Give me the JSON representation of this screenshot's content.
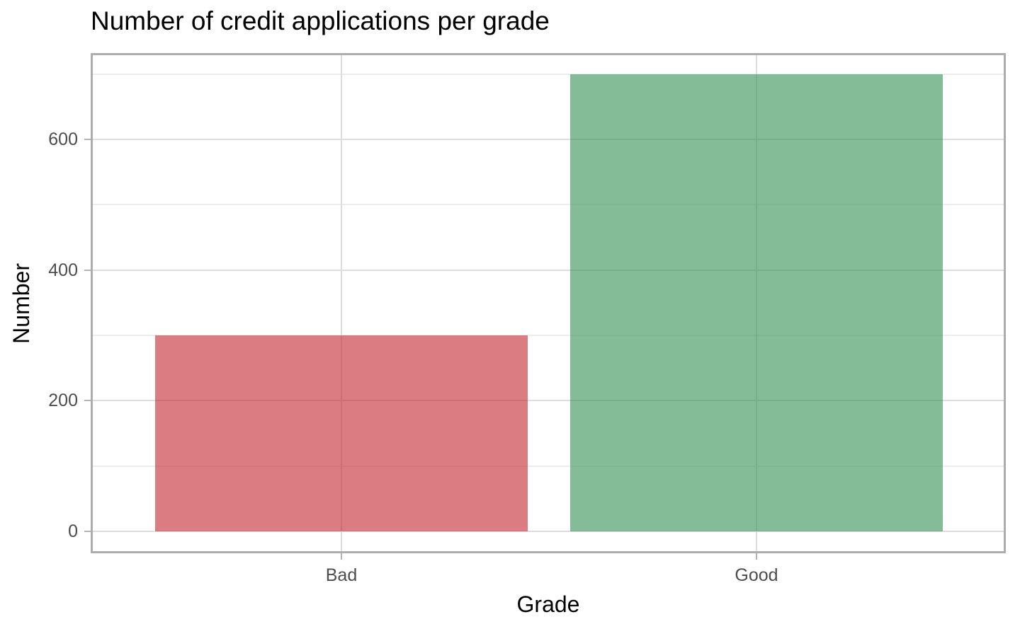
{
  "chart_data": {
    "type": "bar",
    "title": "Number of credit applications per grade",
    "xlabel": "Grade",
    "ylabel": "Number",
    "categories": [
      "Bad",
      "Good"
    ],
    "values": [
      300,
      700
    ],
    "y_ticks": [
      0,
      200,
      400,
      600
    ],
    "y_minor_ticks": [
      100,
      300,
      500,
      700
    ],
    "ylim": [
      -35,
      735
    ],
    "bar_width_fraction": 0.9,
    "grid": "major-and-minor",
    "legend": "none",
    "bar_fills_rgba": [
      "rgba(196,43,51,0.62)",
      "rgba(57,147,87,0.62)"
    ],
    "bar_colors_flattened": [
      "#DA7C80",
      "#84BC97"
    ],
    "theme": {
      "background": "#FFFFFF",
      "panel_border": "#ADADAD",
      "grid_major": "#DDDDDD",
      "grid_minor": "#ECECEC",
      "tick_mark": "#B3B3B3",
      "tick_label_color": "#4D4D4D",
      "title_color": "#000000"
    }
  }
}
